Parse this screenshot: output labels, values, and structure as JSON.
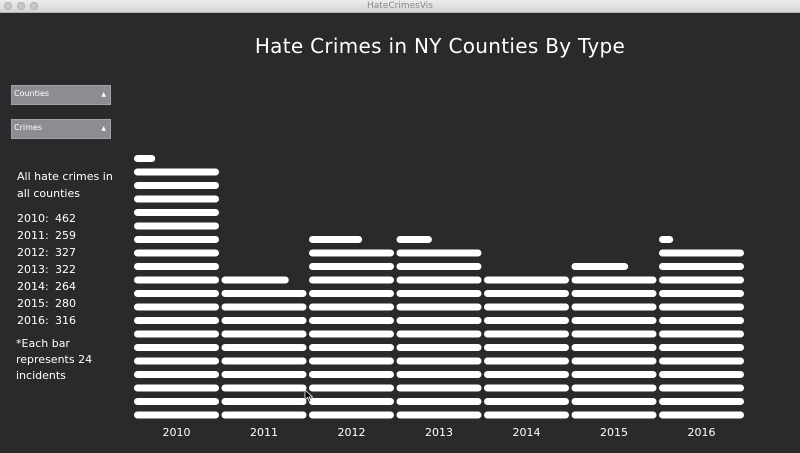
{
  "window": {
    "title": "HateCrimesVis"
  },
  "chart_title": "Hate Crimes in NY Counties By Type",
  "controls": {
    "counties_dropdown": {
      "label": "Counties"
    },
    "crimes_dropdown": {
      "label": "Crimes"
    }
  },
  "summary": {
    "heading": "All hate crimes in all counties",
    "totals": [
      {
        "year": "2010:",
        "value": "462"
      },
      {
        "year": "2011:",
        "value": "259"
      },
      {
        "year": "2012:",
        "value": "327"
      },
      {
        "year": "2013:",
        "value": "322"
      },
      {
        "year": "2014:",
        "value": "264"
      },
      {
        "year": "2015:",
        "value": "280"
      },
      {
        "year": "2016:",
        "value": "316"
      }
    ],
    "note": "*Each bar represents 24 incidents"
  },
  "colors": {
    "background": "#2a292c",
    "bar": "#ffffff",
    "text": "#ffffff",
    "dropdown": "#8d8d91"
  },
  "chart_data": {
    "type": "bar",
    "categories": [
      "2010",
      "2011",
      "2012",
      "2013",
      "2014",
      "2015",
      "2016"
    ],
    "values": [
      462,
      259,
      327,
      322,
      264,
      280,
      316
    ],
    "incidents_per_bar": 24,
    "title": "Hate Crimes in NY Counties By Type",
    "xlabel": "",
    "ylabel": ""
  }
}
